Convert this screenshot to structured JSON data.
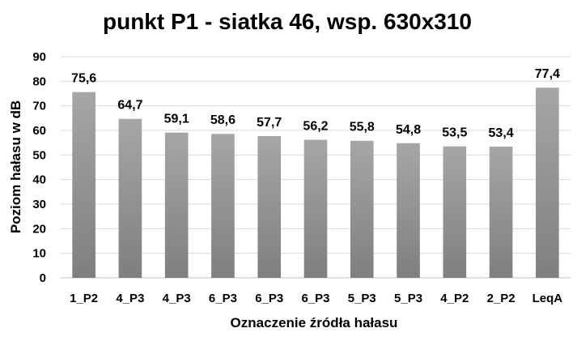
{
  "chart_data": {
    "type": "bar",
    "title": "punkt P1 - siatka 46, wsp. 630x310",
    "xlabel": "Oznaczenie źródła hałasu",
    "ylabel": "Poziom hałasu w dB",
    "categories": [
      "1_P2",
      "4_P3",
      "4_P3",
      "6_P3",
      "6_P3",
      "6_P3",
      "5_P3",
      "5_P3",
      "4_P2",
      "2_P2",
      "LeqA"
    ],
    "values": [
      75.6,
      64.7,
      59.1,
      58.6,
      57.7,
      56.2,
      55.8,
      54.8,
      53.5,
      53.4,
      77.4
    ],
    "data_labels": [
      "75,6",
      "64,7",
      "59,1",
      "58,6",
      "57,7",
      "56,2",
      "55,8",
      "54,8",
      "53,5",
      "53,4",
      "77,4"
    ],
    "ylim": [
      0,
      90
    ],
    "yticks": [
      "0",
      "10",
      "20",
      "30",
      "40",
      "50",
      "60",
      "70",
      "80",
      "90"
    ],
    "grid": true,
    "legend": "none",
    "bar_color_top": "#a6a6a6",
    "bar_color_bottom": "#7f7f7f"
  }
}
